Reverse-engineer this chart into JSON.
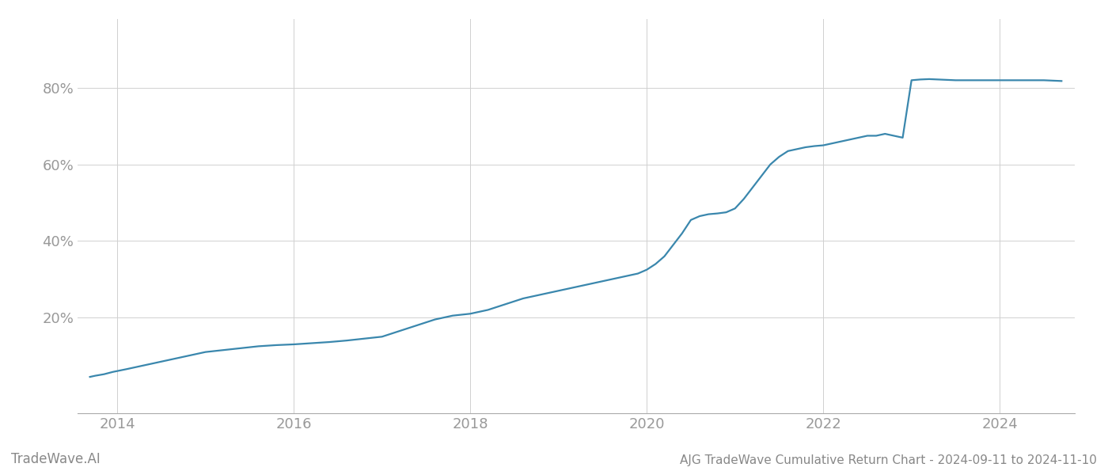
{
  "title": "AJG TradeWave Cumulative Return Chart - 2024-09-11 to 2024-11-10",
  "watermark": "TradeWave.AI",
  "line_color": "#3a87ad",
  "background_color": "#ffffff",
  "grid_color": "#d0d0d0",
  "x_data": [
    2013.69,
    2013.75,
    2013.85,
    2013.95,
    2014.1,
    2014.3,
    2014.5,
    2014.7,
    2014.9,
    2015.0,
    2015.2,
    2015.4,
    2015.6,
    2015.8,
    2016.0,
    2016.2,
    2016.4,
    2016.6,
    2016.8,
    2017.0,
    2017.2,
    2017.4,
    2017.6,
    2017.8,
    2018.0,
    2018.2,
    2018.4,
    2018.6,
    2018.8,
    2019.0,
    2019.1,
    2019.2,
    2019.3,
    2019.4,
    2019.5,
    2019.6,
    2019.7,
    2019.8,
    2019.9,
    2020.0,
    2020.1,
    2020.2,
    2020.3,
    2020.4,
    2020.5,
    2020.6,
    2020.7,
    2020.8,
    2020.9,
    2021.0,
    2021.1,
    2021.2,
    2021.3,
    2021.4,
    2021.5,
    2021.6,
    2021.7,
    2021.8,
    2021.9,
    2022.0,
    2022.1,
    2022.2,
    2022.3,
    2022.4,
    2022.5,
    2022.6,
    2022.7,
    2022.8,
    2022.9,
    2023.0,
    2023.1,
    2023.2,
    2023.3,
    2023.4,
    2023.5,
    2023.6,
    2023.7,
    2023.8,
    2023.9,
    2024.0,
    2024.1,
    2024.2,
    2024.3,
    2024.5,
    2024.7
  ],
  "y_data": [
    4.5,
    4.8,
    5.2,
    5.8,
    6.5,
    7.5,
    8.5,
    9.5,
    10.5,
    11.0,
    11.5,
    12.0,
    12.5,
    12.8,
    13.0,
    13.3,
    13.6,
    14.0,
    14.5,
    15.0,
    16.5,
    18.0,
    19.5,
    20.5,
    21.0,
    22.0,
    23.5,
    25.0,
    26.0,
    27.0,
    27.5,
    28.0,
    28.5,
    29.0,
    29.5,
    30.0,
    30.5,
    31.0,
    31.5,
    32.5,
    34.0,
    36.0,
    39.0,
    42.0,
    45.5,
    46.5,
    47.0,
    47.2,
    47.5,
    48.5,
    51.0,
    54.0,
    57.0,
    60.0,
    62.0,
    63.5,
    64.0,
    64.5,
    64.8,
    65.0,
    65.5,
    66.0,
    66.5,
    67.0,
    67.5,
    67.5,
    68.0,
    67.5,
    67.0,
    82.0,
    82.2,
    82.3,
    82.2,
    82.1,
    82.0,
    82.0,
    82.0,
    82.0,
    82.0,
    82.0,
    82.0,
    82.0,
    82.0,
    82.0,
    81.8
  ],
  "yticks": [
    20,
    40,
    60,
    80
  ],
  "ytick_labels": [
    "20%",
    "40%",
    "60%",
    "80%"
  ],
  "ylim": [
    -5,
    98
  ],
  "xlim": [
    2013.55,
    2024.85
  ],
  "xtick_years": [
    2014,
    2016,
    2018,
    2020,
    2022,
    2024
  ],
  "title_fontsize": 11,
  "watermark_fontsize": 12,
  "tick_fontsize": 13,
  "line_width": 1.6
}
